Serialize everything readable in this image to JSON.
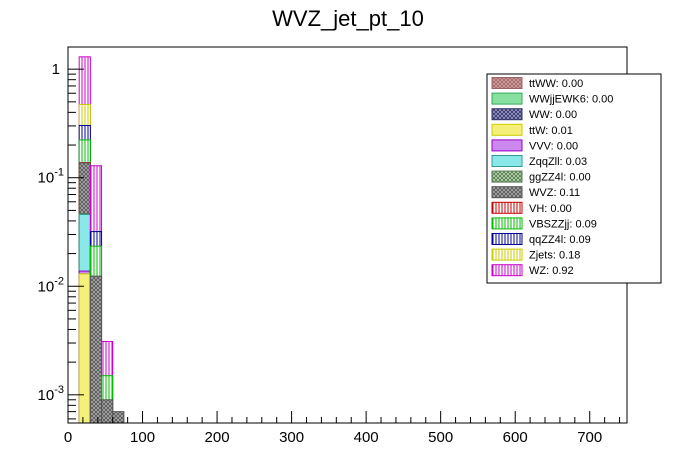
{
  "chart_data": {
    "type": "bar",
    "stacked": true,
    "title": "WVZ_jet_pt_10",
    "xlabel": "",
    "ylabel": "",
    "xlim": [
      0,
      750
    ],
    "ylog": true,
    "ylim": [
      0.00055,
      1.6
    ],
    "bin_width": 15,
    "bin_edges": [
      15,
      30,
      45,
      60,
      75
    ],
    "x_ticks": [
      "0",
      "100",
      "200",
      "300",
      "400",
      "500",
      "600",
      "700"
    ],
    "x_tick_values": [
      0,
      100,
      200,
      300,
      400,
      500,
      600,
      700
    ],
    "y_ticks": [
      "10^-3",
      "10^-2",
      "10^-1",
      "1"
    ],
    "y_tick_values": [
      0.001,
      0.01,
      0.1,
      1
    ],
    "legend_position": "top-right",
    "series": [
      {
        "name": "WZ",
        "legend": "WZ: 0.92",
        "color": "#cc00cc",
        "fill": "#ffffff",
        "pattern": "vlines",
        "values": [
          0.826,
          0.097,
          0.0016,
          0
        ]
      },
      {
        "name": "Zjets",
        "legend": "Zjets: 0.18",
        "color": "#cccc00",
        "fill": "#ffffff",
        "pattern": "vlines",
        "values": [
          0.17,
          0,
          0,
          0
        ]
      },
      {
        "name": "qqZZ4l",
        "legend": "qqZZ4l: 0.09",
        "color": "#000099",
        "fill": "#ffffff",
        "pattern": "vlines",
        "values": [
          0.08,
          0.0085,
          0,
          0
        ]
      },
      {
        "name": "VBSZZjj",
        "legend": "VBSZZjj: 0.09",
        "color": "#00bb00",
        "fill": "#ffffff",
        "pattern": "vlines",
        "values": [
          0.085,
          0.011,
          0.0006,
          0
        ]
      },
      {
        "name": "VH",
        "legend": "VH: 0.00",
        "color": "#cc0000",
        "fill": "#ffffff",
        "pattern": "vlines",
        "values": [
          0.001,
          0,
          0,
          0
        ]
      },
      {
        "name": "WVZ",
        "legend": "WVZ: 0.11",
        "color": "#555555",
        "fill": "#aaaaaa",
        "pattern": "crosshatch",
        "values": [
          0.09,
          0.012,
          0.0009,
          0.0007
        ]
      },
      {
        "name": "ggZZ4l",
        "legend": "ggZZ4l: 0.00",
        "color": "#557755",
        "fill": "#b6d8a8",
        "pattern": "crosshatch",
        "values": [
          0.001,
          0,
          0,
          0
        ]
      },
      {
        "name": "ZqqZll",
        "legend": "ZqqZll: 0.03",
        "color": "#339999",
        "fill": "#8be8e8",
        "pattern": "solid",
        "values": [
          0.032,
          0.0004,
          0,
          0
        ]
      },
      {
        "name": "VVV",
        "legend": "VVV: 0.00",
        "color": "#9900cc",
        "fill": "#cc88ee",
        "pattern": "solid",
        "values": [
          0.0008,
          0,
          0,
          0
        ]
      },
      {
        "name": "ttW",
        "legend": "ttW: 0.01",
        "color": "#cccc00",
        "fill": "#f5f07a",
        "pattern": "solid",
        "values": [
          0.013,
          0,
          0,
          0
        ]
      },
      {
        "name": "WW",
        "legend": "WW: 0.00",
        "color": "#333366",
        "fill": "#9999cc",
        "pattern": "crosshatch",
        "values": [
          0,
          0,
          0,
          0
        ]
      },
      {
        "name": "WWjjEWK6",
        "legend": "WWjjEWK6: 0.00",
        "color": "#33aa55",
        "fill": "#88e0a0",
        "pattern": "solid",
        "values": [
          0,
          0,
          0,
          0
        ]
      },
      {
        "name": "ttWW",
        "legend": "ttWW: 0.00",
        "color": "#996666",
        "fill": "#d9a0a0",
        "pattern": "crosshatch",
        "values": [
          0,
          0,
          0,
          0
        ]
      }
    ]
  }
}
